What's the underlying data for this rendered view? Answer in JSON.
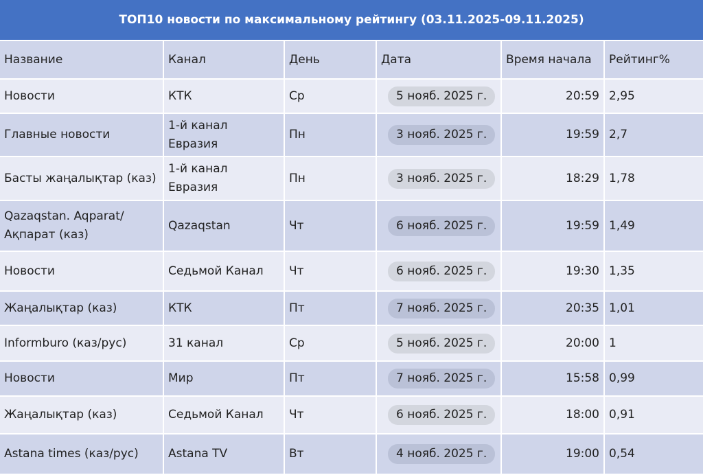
{
  "title": "ТОП10 новости по максимальному рейтингу (03.11.2025-09.11.2025)",
  "headers": [
    "Название",
    "Канал",
    "День",
    "Дата",
    "Время начала",
    "Рейтинг%"
  ],
  "rows": [
    {
      "name": "Новости",
      "channel": "КТК",
      "day": "Ср",
      "date": "5 нояб. 2025 г.",
      "time": "20:59",
      "rating": "2,95"
    },
    {
      "name": "Главные новости",
      "channel": "1-й канал Евразия",
      "day": "Пн",
      "date": "3 нояб. 2025 г.",
      "time": "19:59",
      "rating": "2,7"
    },
    {
      "name": "Басты жаңалықтар (каз)",
      "channel": "1-й канал Евразия",
      "day": "Пн",
      "date": "3 нояб. 2025 г.",
      "time": "18:29",
      "rating": "1,78"
    },
    {
      "name": "Qazaqstan. Aqparat/ Ақпарат (каз)",
      "channel": "Qazaqstan",
      "day": "Чт",
      "date": "6 нояб. 2025 г.",
      "time": "19:59",
      "rating": "1,49"
    },
    {
      "name": "Новости",
      "channel": "Седьмой Канал",
      "day": "Чт",
      "date": "6 нояб. 2025 г.",
      "time": "19:30",
      "rating": "1,35"
    },
    {
      "name": "Жаңалықтар (каз)",
      "channel": "КТК",
      "day": "Пт",
      "date": "7 нояб. 2025 г.",
      "time": "20:35",
      "rating": "1,01"
    },
    {
      "name": "Informburo (каз/рус)",
      "channel": "31 канал",
      "day": "Ср",
      "date": "5 нояб. 2025 г.",
      "time": "20:00",
      "rating": "1"
    },
    {
      "name": "Новости",
      "channel": "Мир",
      "day": "Пт",
      "date": "7 нояб. 2025 г.",
      "time": "15:58",
      "rating": "0,99"
    },
    {
      "name": "Жаңалықтар (каз)",
      "channel": "Седьмой Канал",
      "day": "Чт",
      "date": "6 нояб. 2025 г.",
      "time": "18:00",
      "rating": "0,91"
    },
    {
      "name": "Astana times (каз/рус)",
      "channel": "Astana TV",
      "day": "Вт",
      "date": "4 нояб. 2025 г.",
      "time": "19:00",
      "rating": "0,54"
    }
  ],
  "colors": {
    "title_bg": "#4472c4",
    "row_dark": "#cfd5ea",
    "row_light": "#e9ebf5"
  }
}
